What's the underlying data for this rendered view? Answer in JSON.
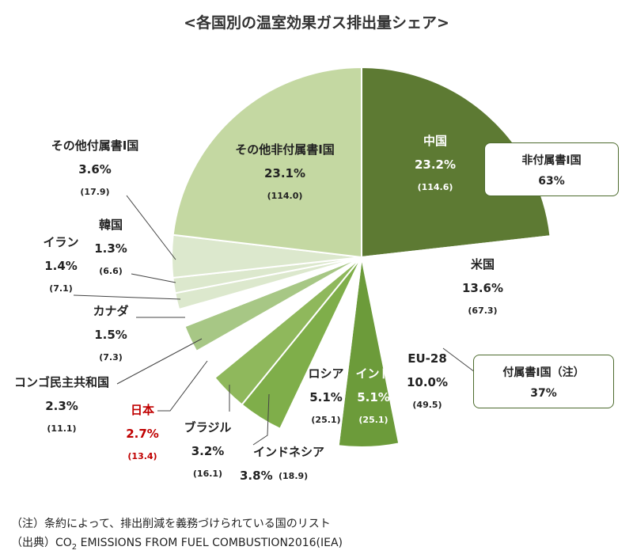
{
  "title": "<各国別の温室効果ガス排出量シェア>",
  "chart_data": {
    "type": "pie",
    "title": "<各国別の温室効果ガス排出量シェア>",
    "slices": [
      {
        "name": "中国",
        "percent": "23.2%",
        "value": "(114.6)",
        "share": 23.2,
        "color": "#5d7a33"
      },
      {
        "name": "米国",
        "percent": "13.6%",
        "value": "(67.3)",
        "share": 13.6,
        "color": "#ffffff"
      },
      {
        "name": "EU-28",
        "percent": "10.0%",
        "value": "(49.5)",
        "share": 10.0,
        "color": "#ffffff"
      },
      {
        "name": "インド",
        "percent": "5.1%",
        "value": "(25.1)",
        "share": 5.1,
        "color": "#6c9b3a"
      },
      {
        "name": "ロシア",
        "percent": "5.1%",
        "value": "(25.1)",
        "share": 5.1,
        "color": "#ffffff"
      },
      {
        "name": "インドネシア",
        "percent": "3.8%",
        "value": "(18.9)",
        "share": 3.8,
        "color": "#7fae4a"
      },
      {
        "name": "ブラジル",
        "percent": "3.2%",
        "value": "(16.1)",
        "share": 3.2,
        "color": "#8fb85c"
      },
      {
        "name": "日本",
        "percent": "2.7%",
        "value": "(13.4)",
        "share": 2.7,
        "color": "#ffffff"
      },
      {
        "name": "コンゴ民主共和国",
        "percent": "2.3%",
        "value": "(11.1)",
        "share": 2.3,
        "color": "#a7c785"
      },
      {
        "name": "カナダ",
        "percent": "1.5%",
        "value": "(7.3)",
        "share": 1.5,
        "color": "#ffffff"
      },
      {
        "name": "イラン",
        "percent": "1.4%",
        "value": "(7.1)",
        "share": 1.4,
        "color": "#dce8cd"
      },
      {
        "name": "韓国",
        "percent": "1.3%",
        "value": "(6.6)",
        "share": 1.3,
        "color": "#dce8cd"
      },
      {
        "name": "その他付属書Ⅰ国",
        "percent": "3.6%",
        "value": "(17.9)",
        "share": 3.6,
        "color": "#dce8cd"
      },
      {
        "name": "その他非付属書Ⅰ国",
        "percent": "23.1%",
        "value": "(114.0)",
        "share": 23.1,
        "color": "#c4d8a2"
      }
    ]
  },
  "callouts": [
    {
      "label": "非付属書Ⅰ国",
      "value": "63%"
    },
    {
      "label": "付属書Ⅰ国（注）",
      "value": "37%"
    }
  ],
  "notes": {
    "note": "（注）条約によって、排出削減を義務づけられている国のリスト",
    "source_prefix": "（出典）CO",
    "source_sub": "2",
    "source_rest": " EMISSIONS FROM FUEL COMBUSTION2016(IEA)"
  }
}
